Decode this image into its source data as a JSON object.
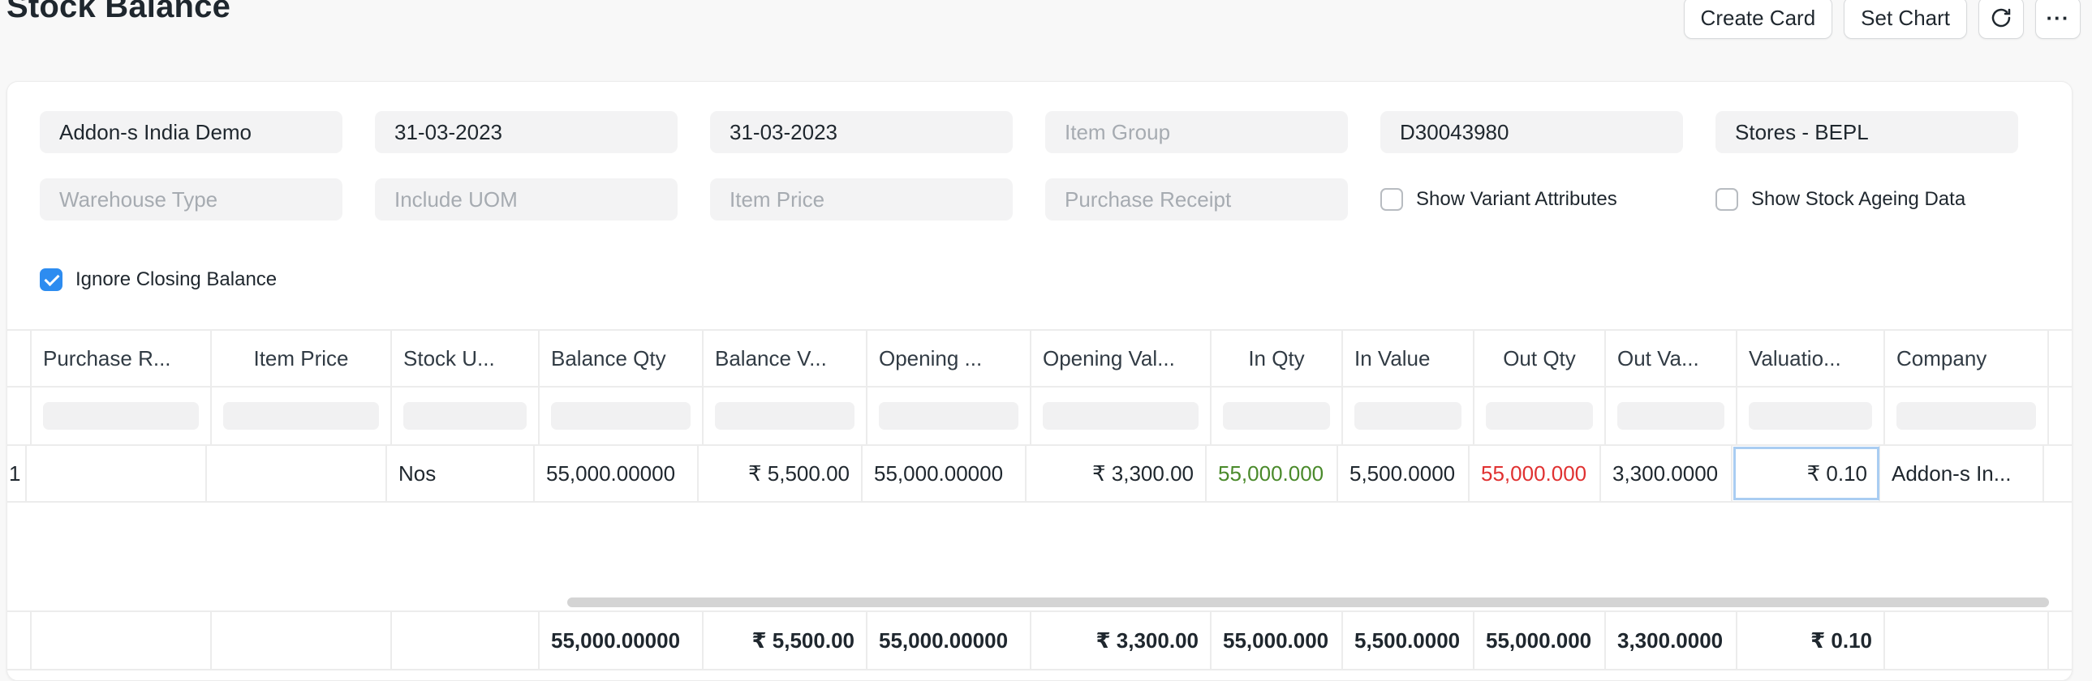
{
  "header": {
    "title": "Stock Balance",
    "actions": {
      "create_card": "Create Card",
      "set_chart": "Set Chart",
      "refresh_icon": "refresh-icon",
      "more_icon": "more-icon",
      "more_glyph": "···"
    }
  },
  "filters": {
    "company": "Addon-s India Demo",
    "from_date": "31-03-2023",
    "to_date": "31-03-2023",
    "item_group_placeholder": "Item Group",
    "item_code": "D30043980",
    "warehouse": "Stores - BEPL",
    "warehouse_type_placeholder": "Warehouse Type",
    "include_uom_placeholder": "Include UOM",
    "item_price_placeholder": "Item Price",
    "purchase_receipt_placeholder": "Purchase Receipt",
    "show_variant_attributes": {
      "label": "Show Variant Attributes",
      "checked": false
    },
    "show_stock_ageing_data": {
      "label": "Show Stock Ageing Data",
      "checked": false
    },
    "ignore_closing_balance": {
      "label": "Ignore Closing Balance",
      "checked": true
    }
  },
  "table": {
    "columns": [
      "",
      "Purchase R...",
      "Item Price",
      "Stock U...",
      "Balance Qty",
      "Balance V...",
      "Opening ...",
      "Opening Val...",
      "In Qty",
      "In Value",
      "Out Qty",
      "Out Va...",
      "Valuatio...",
      "Company"
    ],
    "row": {
      "c0": "1",
      "purchase_receipt": "",
      "item_price": "",
      "stock_uom": "Nos",
      "balance_qty": "55,000.00000",
      "balance_value": "₹ 5,500.00",
      "opening_qty": "55,000.00000",
      "opening_value": "₹ 3,300.00",
      "in_qty": "55,000.000",
      "in_value": "5,500.0000",
      "out_qty": "55,000.000",
      "out_value": "3,300.0000",
      "valuation_rate": "₹ 0.10",
      "company": "Addon-s In..."
    },
    "totals": {
      "balance_qty": "55,000.00000",
      "balance_value": "₹ 5,500.00",
      "opening_qty": "55,000.00000",
      "opening_value": "₹ 3,300.00",
      "in_qty": "55,000.000",
      "in_value": "5,500.0000",
      "out_qty": "55,000.000",
      "out_value": "3,300.0000",
      "valuation_rate": "₹ 0.10"
    }
  },
  "colors": {
    "in_qty": "#4a8a2b",
    "out_qty": "#e03131",
    "checkbox_on": "#2d8cf0"
  }
}
